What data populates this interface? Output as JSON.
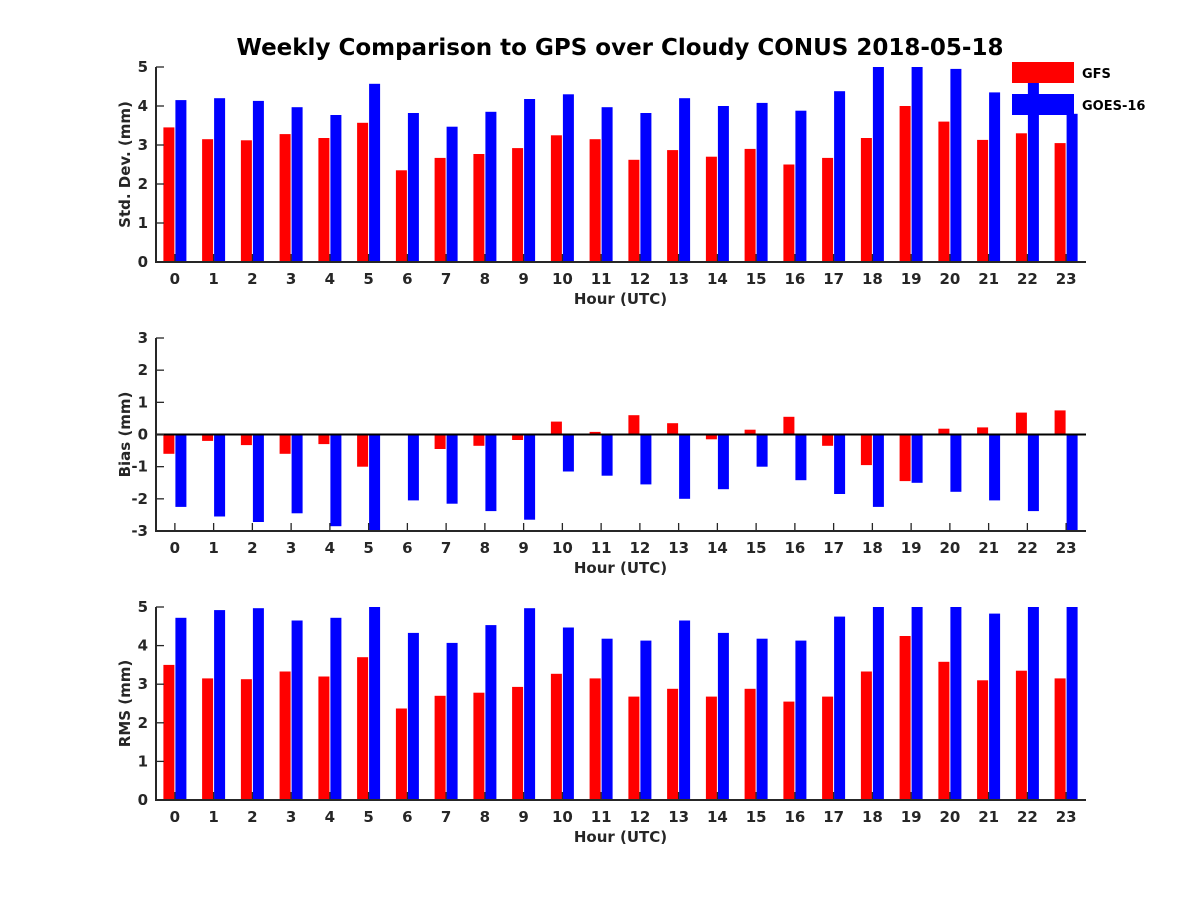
{
  "title": "Weekly Comparison to GPS over Cloudy CONUS 2018-05-18",
  "colors": {
    "GFS": "#ff0000",
    "GOES-16": "#0000ff"
  },
  "legend": {
    "position": "top-right",
    "entries": [
      "GFS",
      "GOES-16"
    ]
  },
  "chart_data": [
    {
      "type": "bar",
      "ylabel": "Std. Dev. (mm)",
      "xlabel": "Hour (UTC)",
      "ylim": [
        0,
        5
      ],
      "yticks": [
        0,
        1,
        2,
        3,
        4,
        5
      ],
      "categories": [
        "0",
        "1",
        "2",
        "3",
        "4",
        "5",
        "6",
        "7",
        "8",
        "9",
        "10",
        "11",
        "12",
        "13",
        "14",
        "15",
        "16",
        "17",
        "18",
        "19",
        "20",
        "21",
        "22",
        "23"
      ],
      "series": [
        {
          "name": "GFS",
          "values": [
            3.45,
            3.15,
            3.12,
            3.28,
            3.18,
            3.57,
            2.35,
            2.67,
            2.77,
            2.92,
            3.25,
            3.15,
            2.62,
            2.87,
            2.7,
            2.9,
            2.5,
            2.67,
            3.18,
            4.0,
            3.6,
            3.13,
            3.3,
            3.05
          ]
        },
        {
          "name": "GOES-16",
          "values": [
            4.15,
            4.2,
            4.13,
            3.97,
            3.77,
            4.57,
            3.82,
            3.47,
            3.85,
            4.18,
            4.3,
            3.97,
            3.82,
            4.2,
            4.0,
            4.08,
            3.88,
            4.38,
            5.0,
            5.0,
            4.95,
            4.35,
            4.62,
            3.8
          ]
        }
      ]
    },
    {
      "type": "bar",
      "ylabel": "Bias (mm)",
      "xlabel": "Hour (UTC)",
      "ylim": [
        -3,
        3
      ],
      "yticks": [
        -3,
        -2,
        -1,
        0,
        1,
        2,
        3
      ],
      "categories": [
        "0",
        "1",
        "2",
        "3",
        "4",
        "5",
        "6",
        "7",
        "8",
        "9",
        "10",
        "11",
        "12",
        "13",
        "14",
        "15",
        "16",
        "17",
        "18",
        "19",
        "20",
        "21",
        "22",
        "23"
      ],
      "series": [
        {
          "name": "GFS",
          "values": [
            -0.6,
            -0.2,
            -0.33,
            -0.6,
            -0.3,
            -1.0,
            0.0,
            -0.45,
            -0.35,
            -0.17,
            0.4,
            0.08,
            0.6,
            0.35,
            -0.15,
            0.15,
            0.55,
            -0.35,
            -0.95,
            -1.45,
            0.18,
            0.22,
            0.68,
            0.75
          ]
        },
        {
          "name": "GOES-16",
          "values": [
            -2.25,
            -2.55,
            -2.72,
            -2.45,
            -2.85,
            -3.0,
            -2.05,
            -2.15,
            -2.38,
            -2.65,
            -1.15,
            -1.28,
            -1.55,
            -2.0,
            -1.7,
            -1.0,
            -1.42,
            -1.85,
            -2.25,
            -1.5,
            -1.78,
            -2.05,
            -2.38,
            -3.0
          ]
        }
      ]
    },
    {
      "type": "bar",
      "ylabel": "RMS (mm)",
      "xlabel": "Hour (UTC)",
      "ylim": [
        0,
        5
      ],
      "yticks": [
        0,
        1,
        2,
        3,
        4,
        5
      ],
      "categories": [
        "0",
        "1",
        "2",
        "3",
        "4",
        "5",
        "6",
        "7",
        "8",
        "9",
        "10",
        "11",
        "12",
        "13",
        "14",
        "15",
        "16",
        "17",
        "18",
        "19",
        "20",
        "21",
        "22",
        "23"
      ],
      "series": [
        {
          "name": "GFS",
          "values": [
            3.5,
            3.15,
            3.13,
            3.33,
            3.2,
            3.7,
            2.37,
            2.7,
            2.78,
            2.93,
            3.27,
            3.15,
            2.68,
            2.88,
            2.68,
            2.88,
            2.55,
            2.68,
            3.33,
            4.25,
            3.58,
            3.1,
            3.35,
            3.15
          ]
        },
        {
          "name": "GOES-16",
          "values": [
            4.72,
            4.92,
            4.97,
            4.65,
            4.72,
            5.0,
            4.33,
            4.07,
            4.53,
            4.97,
            4.47,
            4.18,
            4.13,
            4.65,
            4.33,
            4.18,
            4.13,
            4.75,
            5.0,
            5.0,
            5.0,
            4.83,
            5.0,
            5.0
          ]
        }
      ]
    }
  ]
}
